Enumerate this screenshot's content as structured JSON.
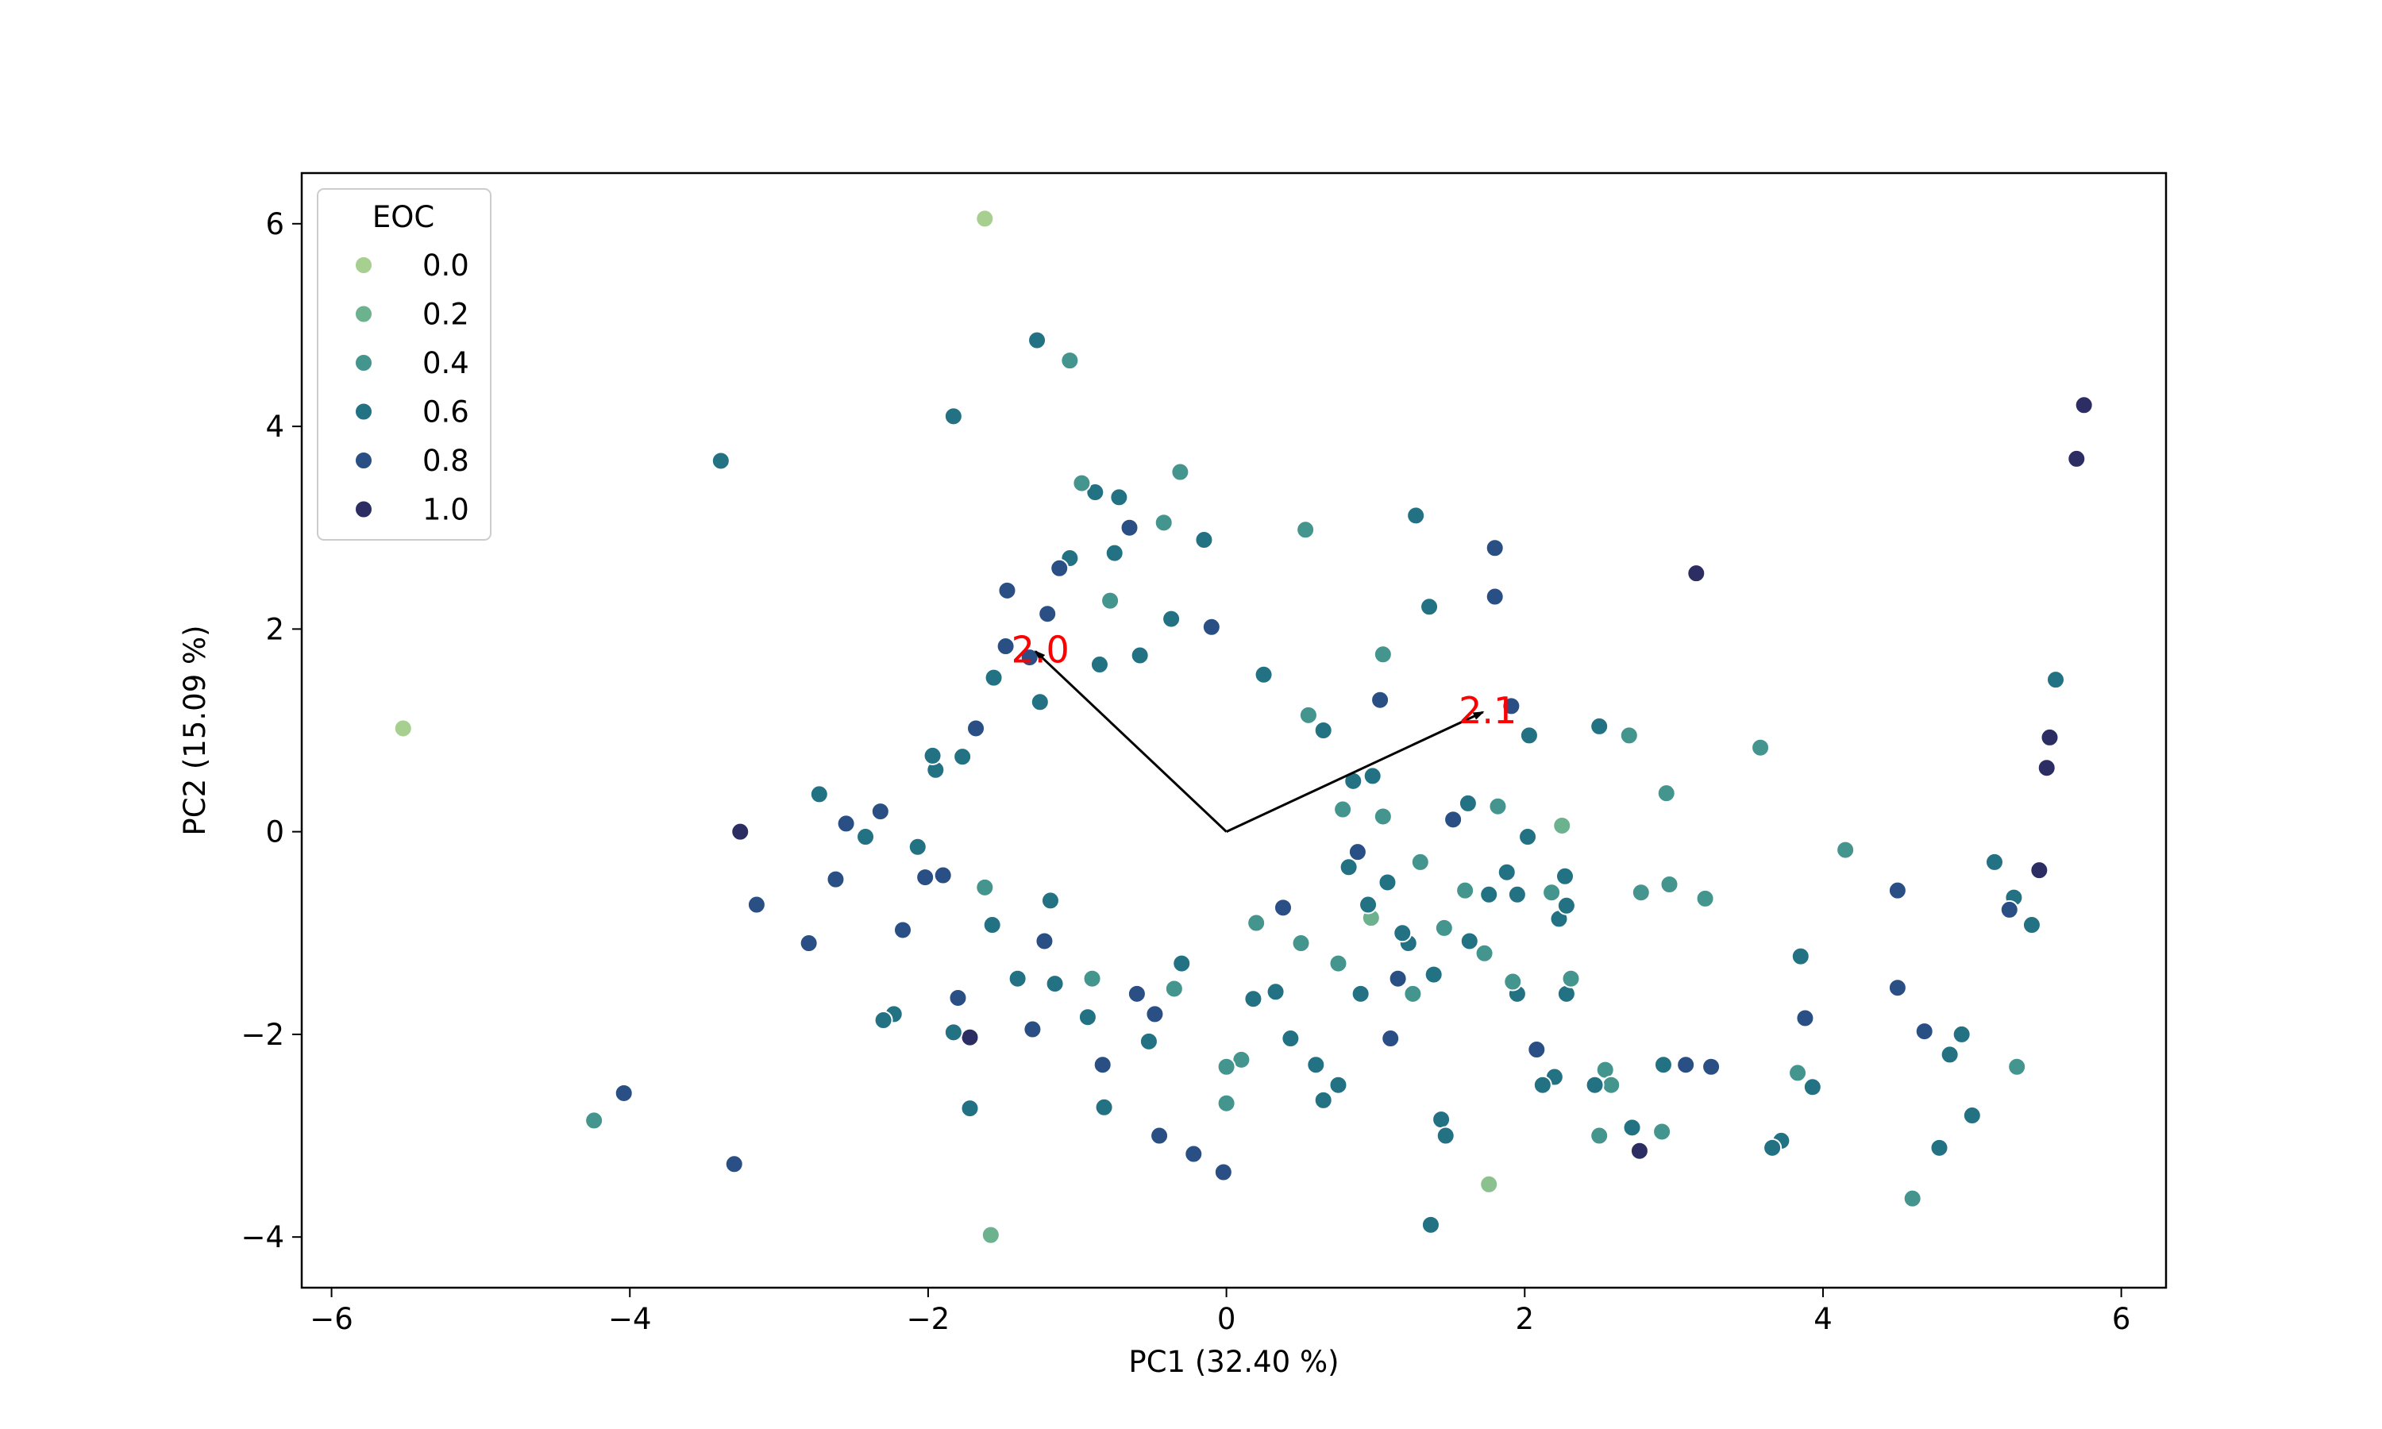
{
  "chart_data": {
    "type": "scatter",
    "xlabel": "PC1 (32.40 %)",
    "ylabel": "PC2 (15.09 %)",
    "xlim": [
      -6.2,
      6.3
    ],
    "ylim": [
      -4.5,
      6.5
    ],
    "xticks": [
      -6,
      -4,
      -2,
      0,
      2,
      4,
      6
    ],
    "yticks": [
      -4,
      -2,
      0,
      2,
      4,
      6
    ],
    "xtick_labels": [
      "−6",
      "−4",
      "−2",
      "0",
      "2",
      "4",
      "6"
    ],
    "ytick_labels": [
      "−4",
      "−2",
      "0",
      "2",
      "4",
      "6"
    ],
    "grid": false,
    "legend": {
      "title": "EOC",
      "position": "upper-left",
      "entries": [
        {
          "label": "0.0",
          "color": "#a7cf8f"
        },
        {
          "label": "0.2",
          "color": "#6db28f"
        },
        {
          "label": "0.4",
          "color": "#45958f"
        },
        {
          "label": "0.6",
          "color": "#237284"
        },
        {
          "label": "0.8",
          "color": "#2a4f85"
        },
        {
          "label": "1.0",
          "color": "#2c2d62"
        }
      ]
    },
    "colormap_note": "crest",
    "loadings": [
      {
        "label": "2.0",
        "x": -1.28,
        "y": 1.78
      },
      {
        "label": "2.1",
        "x": 1.72,
        "y": 1.18
      }
    ],
    "points": [
      [
        -1.62,
        6.05,
        0.0
      ],
      [
        -5.52,
        1.02,
        0.0
      ],
      [
        -1.58,
        -3.98,
        0.2
      ],
      [
        1.76,
        -3.48,
        0.1
      ],
      [
        -1.05,
        4.65,
        0.4
      ],
      [
        -1.27,
        4.85,
        0.6
      ],
      [
        -1.83,
        4.1,
        0.6
      ],
      [
        -3.39,
        3.66,
        0.6
      ],
      [
        5.75,
        4.21,
        1.0
      ],
      [
        5.7,
        3.68,
        1.0
      ],
      [
        5.56,
        1.5,
        0.6
      ],
      [
        5.52,
        0.93,
        1.0
      ],
      [
        5.5,
        0.63,
        1.0
      ],
      [
        5.45,
        -0.38,
        1.0
      ],
      [
        5.4,
        -0.92,
        0.6
      ],
      [
        5.28,
        -0.65,
        0.6
      ],
      [
        5.25,
        -0.77,
        0.8
      ],
      [
        5.15,
        -0.3,
        0.6
      ],
      [
        5.3,
        -2.32,
        0.4
      ],
      [
        5.0,
        -2.8,
        0.6
      ],
      [
        4.93,
        -2.0,
        0.6
      ],
      [
        4.85,
        -2.2,
        0.6
      ],
      [
        4.78,
        -3.12,
        0.6
      ],
      [
        4.68,
        -1.97,
        0.8
      ],
      [
        4.6,
        -3.62,
        0.4
      ],
      [
        4.5,
        -0.58,
        0.8
      ],
      [
        4.5,
        -1.54,
        0.8
      ],
      [
        4.15,
        -0.18,
        0.4
      ],
      [
        3.93,
        -2.52,
        0.6
      ],
      [
        3.85,
        -1.23,
        0.6
      ],
      [
        3.88,
        -1.84,
        0.8
      ],
      [
        3.83,
        -2.38,
        0.4
      ],
      [
        3.72,
        -3.05,
        0.6
      ],
      [
        3.66,
        -3.12,
        0.6
      ],
      [
        3.58,
        0.83,
        0.4
      ],
      [
        3.21,
        -0.66,
        0.4
      ],
      [
        3.08,
        -2.3,
        0.8
      ],
      [
        3.15,
        2.55,
        1.0
      ],
      [
        3.25,
        -2.32,
        0.8
      ],
      [
        2.95,
        0.38,
        0.4
      ],
      [
        2.97,
        -0.52,
        0.4
      ],
      [
        2.92,
        -2.96,
        0.4
      ],
      [
        2.93,
        -2.3,
        0.6
      ],
      [
        2.77,
        -3.15,
        1.0
      ],
      [
        2.72,
        -2.92,
        0.6
      ],
      [
        2.78,
        -0.6,
        0.4
      ],
      [
        2.7,
        0.95,
        0.4
      ],
      [
        2.54,
        -2.35,
        0.4
      ],
      [
        2.58,
        -2.5,
        0.4
      ],
      [
        2.5,
        -3.0,
        0.4
      ],
      [
        2.5,
        1.04,
        0.6
      ],
      [
        2.47,
        -2.5,
        0.6
      ],
      [
        2.28,
        -1.6,
        0.6
      ],
      [
        2.31,
        -1.45,
        0.4
      ],
      [
        2.2,
        -2.42,
        0.6
      ],
      [
        2.23,
        -0.86,
        0.6
      ],
      [
        2.28,
        -0.73,
        0.6
      ],
      [
        2.27,
        -0.44,
        0.6
      ],
      [
        2.25,
        0.06,
        0.2
      ],
      [
        2.18,
        -0.6,
        0.4
      ],
      [
        2.08,
        -2.15,
        0.8
      ],
      [
        2.12,
        -2.5,
        0.6
      ],
      [
        2.03,
        0.95,
        0.6
      ],
      [
        2.02,
        -0.05,
        0.6
      ],
      [
        1.95,
        -1.6,
        0.6
      ],
      [
        1.92,
        -1.48,
        0.4
      ],
      [
        1.91,
        1.24,
        0.8
      ],
      [
        1.95,
        -0.62,
        0.6
      ],
      [
        1.88,
        -0.4,
        0.6
      ],
      [
        1.82,
        0.25,
        0.4
      ],
      [
        1.8,
        2.8,
        0.8
      ],
      [
        1.8,
        2.32,
        0.8
      ],
      [
        1.76,
        -0.62,
        0.6
      ],
      [
        1.73,
        -1.2,
        0.4
      ],
      [
        1.63,
        -1.08,
        0.6
      ],
      [
        1.62,
        0.28,
        0.6
      ],
      [
        1.6,
        -0.58,
        0.4
      ],
      [
        1.52,
        0.12,
        0.8
      ],
      [
        1.44,
        -2.84,
        0.6
      ],
      [
        1.47,
        -3.0,
        0.6
      ],
      [
        1.46,
        -0.95,
        0.4
      ],
      [
        1.39,
        -1.41,
        0.6
      ],
      [
        1.37,
        -3.88,
        0.6
      ],
      [
        1.36,
        2.22,
        0.6
      ],
      [
        1.27,
        3.12,
        0.6
      ],
      [
        1.22,
        -1.1,
        0.6
      ],
      [
        1.15,
        -1.45,
        0.8
      ],
      [
        1.1,
        -2.04,
        0.8
      ],
      [
        1.05,
        1.75,
        0.4
      ],
      [
        1.03,
        1.3,
        0.8
      ],
      [
        0.97,
        -0.85,
        0.2
      ],
      [
        0.85,
        0.5,
        0.6
      ],
      [
        0.82,
        -0.35,
        0.6
      ],
      [
        0.75,
        -1.3,
        0.4
      ],
      [
        0.75,
        -2.5,
        0.6
      ],
      [
        0.65,
        -2.65,
        0.6
      ],
      [
        0.6,
        -2.3,
        0.6
      ],
      [
        0.53,
        2.98,
        0.4
      ],
      [
        0.43,
        -2.04,
        0.6
      ],
      [
        0.38,
        -0.75,
        0.8
      ],
      [
        0.33,
        -1.58,
        0.6
      ],
      [
        0.2,
        -0.9,
        0.4
      ],
      [
        0.1,
        -2.25,
        0.4
      ],
      [
        -0.02,
        -3.36,
        0.8
      ],
      [
        0.0,
        -2.68,
        0.4
      ],
      [
        0.0,
        -2.32,
        0.4
      ],
      [
        -0.15,
        2.88,
        0.6
      ],
      [
        -0.22,
        -3.18,
        0.8
      ],
      [
        -0.31,
        3.55,
        0.4
      ],
      [
        -0.37,
        2.1,
        0.6
      ],
      [
        -0.42,
        3.05,
        0.4
      ],
      [
        -0.45,
        -3.0,
        0.8
      ],
      [
        -0.52,
        -2.07,
        0.6
      ],
      [
        -0.58,
        1.74,
        0.6
      ],
      [
        -0.65,
        3.0,
        0.8
      ],
      [
        -0.72,
        3.3,
        0.6
      ],
      [
        -0.75,
        2.75,
        0.6
      ],
      [
        -0.78,
        2.28,
        0.4
      ],
      [
        -0.83,
        -2.3,
        0.8
      ],
      [
        -0.82,
        -2.72,
        0.6
      ],
      [
        -0.88,
        3.35,
        0.6
      ],
      [
        -0.93,
        -1.83,
        0.6
      ],
      [
        -0.97,
        3.44,
        0.4
      ],
      [
        -1.05,
        2.7,
        0.6
      ],
      [
        -1.12,
        2.6,
        0.8
      ],
      [
        -1.2,
        2.15,
        0.8
      ],
      [
        -1.47,
        2.38,
        0.8
      ],
      [
        -1.56,
        1.52,
        0.6
      ],
      [
        -1.72,
        -2.73,
        0.6
      ],
      [
        -1.72,
        -2.03,
        1.0
      ],
      [
        -1.77,
        0.74,
        0.6
      ],
      [
        -1.8,
        -1.64,
        0.8
      ],
      [
        -1.83,
        -1.98,
        0.6
      ],
      [
        -1.9,
        -0.43,
        0.8
      ],
      [
        -1.95,
        0.61,
        0.6
      ],
      [
        -1.97,
        0.75,
        0.6
      ],
      [
        -2.02,
        -0.45,
        0.8
      ],
      [
        -2.07,
        -0.15,
        0.6
      ],
      [
        -2.17,
        -0.97,
        0.8
      ],
      [
        -2.23,
        -1.8,
        0.6
      ],
      [
        -2.3,
        -1.86,
        0.6
      ],
      [
        -2.32,
        0.2,
        0.8
      ],
      [
        -2.42,
        -0.05,
        0.6
      ],
      [
        -2.55,
        0.08,
        0.8
      ],
      [
        -2.62,
        -0.47,
        0.8
      ],
      [
        -2.8,
        -1.1,
        0.8
      ],
      [
        -2.73,
        0.37,
        0.6
      ],
      [
        -3.15,
        -0.72,
        0.8
      ],
      [
        -3.26,
        0.0,
        1.0
      ],
      [
        -3.3,
        -3.28,
        0.8
      ],
      [
        -4.04,
        -2.58,
        0.8
      ],
      [
        -4.24,
        -2.85,
        0.4
      ],
      [
        -1.68,
        1.02,
        0.8
      ],
      [
        -1.62,
        -0.55,
        0.4
      ],
      [
        -1.57,
        -0.92,
        0.6
      ],
      [
        -1.48,
        1.83,
        0.8
      ],
      [
        -1.4,
        -1.45,
        0.6
      ],
      [
        -1.32,
        1.72,
        0.8
      ],
      [
        -1.3,
        -1.95,
        0.8
      ],
      [
        -1.25,
        1.28,
        0.6
      ],
      [
        -1.22,
        -1.08,
        0.8
      ],
      [
        -1.18,
        -0.68,
        0.6
      ],
      [
        -1.15,
        -1.5,
        0.6
      ],
      [
        -0.9,
        -1.45,
        0.4
      ],
      [
        -0.85,
        1.65,
        0.6
      ],
      [
        -0.6,
        -1.6,
        0.8
      ],
      [
        -0.48,
        -1.8,
        0.8
      ],
      [
        -0.35,
        -1.55,
        0.4
      ],
      [
        -0.3,
        -1.3,
        0.6
      ],
      [
        -0.1,
        2.02,
        0.8
      ],
      [
        0.18,
        -1.65,
        0.6
      ],
      [
        0.25,
        1.55,
        0.6
      ],
      [
        0.5,
        -1.1,
        0.4
      ],
      [
        0.55,
        1.15,
        0.4
      ],
      [
        0.65,
        1.0,
        0.6
      ],
      [
        0.78,
        0.22,
        0.4
      ],
      [
        0.9,
        -1.6,
        0.6
      ],
      [
        1.05,
        0.15,
        0.4
      ],
      [
        1.08,
        -0.5,
        0.6
      ],
      [
        1.18,
        -1.0,
        0.6
      ],
      [
        1.3,
        -0.3,
        0.4
      ],
      [
        1.25,
        -1.6,
        0.4
      ],
      [
        0.95,
        -0.72,
        0.6
      ],
      [
        0.98,
        0.55,
        0.6
      ],
      [
        0.88,
        -0.2,
        0.8
      ]
    ]
  }
}
